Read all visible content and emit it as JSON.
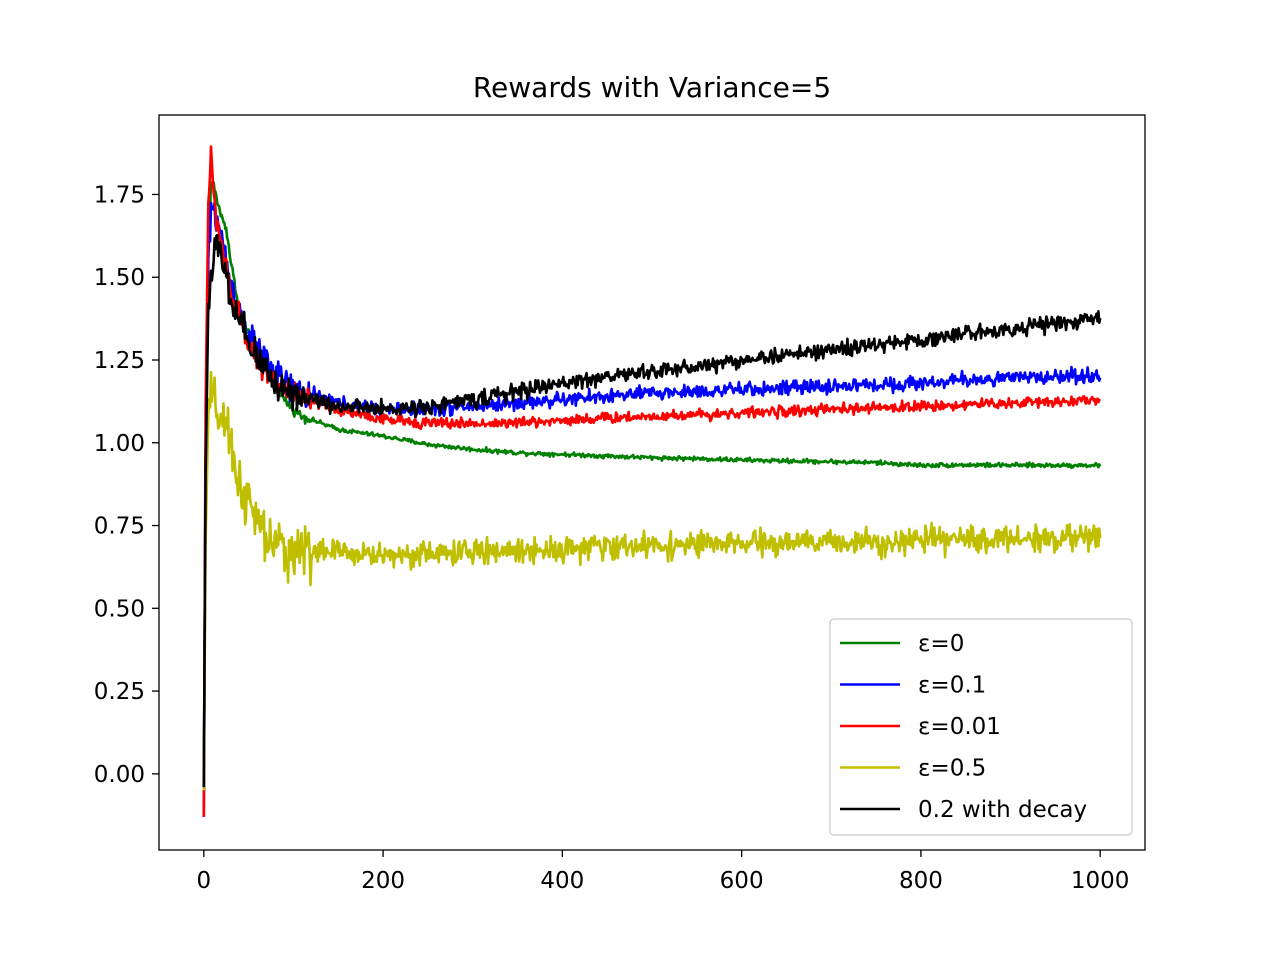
{
  "chart_data": {
    "type": "line",
    "title": "Rewards with Variance=5",
    "xlabel": "",
    "ylabel": "",
    "xlim": [
      -50,
      1050
    ],
    "ylim": [
      -0.23,
      1.99
    ],
    "xticks": [
      0,
      200,
      400,
      600,
      800,
      1000
    ],
    "yticks": [
      0.0,
      0.25,
      0.5,
      0.75,
      1.0,
      1.25,
      1.5,
      1.75
    ],
    "xtick_labels": [
      "0",
      "200",
      "400",
      "600",
      "800",
      "1000"
    ],
    "ytick_labels": [
      "0.00",
      "0.25",
      "0.50",
      "0.75",
      "1.00",
      "1.25",
      "1.50",
      "1.75"
    ],
    "grid": false,
    "legend_position": "lower-right",
    "series": [
      {
        "name": "ε=0",
        "color": "#008000",
        "noise": 0.006,
        "x": [
          0,
          2,
          5,
          8,
          10,
          14,
          20,
          25,
          30,
          35,
          40,
          50,
          60,
          70,
          80,
          90,
          100,
          110,
          120,
          150,
          200,
          250,
          300,
          350,
          400,
          450,
          500,
          550,
          600,
          650,
          700,
          750,
          800,
          850,
          900,
          950,
          1000
        ],
        "y": [
          -0.05,
          0.95,
          1.6,
          1.78,
          1.79,
          1.74,
          1.68,
          1.65,
          1.55,
          1.47,
          1.4,
          1.33,
          1.26,
          1.22,
          1.17,
          1.13,
          1.1,
          1.08,
          1.07,
          1.04,
          1.02,
          0.995,
          0.98,
          0.97,
          0.965,
          0.96,
          0.955,
          0.952,
          0.948,
          0.945,
          0.943,
          0.94,
          0.932,
          0.933,
          0.932,
          0.932,
          0.932
        ]
      },
      {
        "name": "ε=0.1",
        "color": "#0000ff",
        "noise": 0.02,
        "x": [
          0,
          2,
          5,
          8,
          10,
          14,
          20,
          25,
          30,
          40,
          50,
          60,
          70,
          80,
          100,
          150,
          200,
          250,
          300,
          350,
          400,
          450,
          500,
          550,
          600,
          650,
          700,
          750,
          800,
          850,
          900,
          950,
          1000
        ],
        "y": [
          -0.13,
          0.95,
          1.55,
          1.68,
          1.72,
          1.68,
          1.62,
          1.55,
          1.48,
          1.4,
          1.32,
          1.28,
          1.25,
          1.2,
          1.16,
          1.12,
          1.1,
          1.1,
          1.11,
          1.12,
          1.13,
          1.14,
          1.15,
          1.155,
          1.16,
          1.165,
          1.17,
          1.175,
          1.18,
          1.19,
          1.195,
          1.2,
          1.205
        ]
      },
      {
        "name": "ε=0.01",
        "color": "#ff0000",
        "noise": 0.015,
        "x": [
          0,
          2,
          5,
          8,
          10,
          14,
          20,
          25,
          30,
          40,
          50,
          60,
          70,
          80,
          100,
          150,
          200,
          250,
          300,
          350,
          400,
          450,
          500,
          550,
          600,
          650,
          700,
          750,
          800,
          850,
          900,
          950,
          1000
        ],
        "y": [
          -0.13,
          1.1,
          1.72,
          1.88,
          1.77,
          1.68,
          1.6,
          1.52,
          1.45,
          1.38,
          1.3,
          1.25,
          1.22,
          1.18,
          1.14,
          1.1,
          1.07,
          1.06,
          1.058,
          1.06,
          1.068,
          1.075,
          1.08,
          1.085,
          1.09,
          1.095,
          1.1,
          1.105,
          1.11,
          1.115,
          1.12,
          1.125,
          1.13
        ]
      },
      {
        "name": "ε=0.5",
        "color": "#bfbf00",
        "noise": 0.035,
        "x": [
          0,
          2,
          5,
          8,
          10,
          14,
          20,
          25,
          30,
          40,
          50,
          60,
          70,
          80,
          100,
          150,
          200,
          250,
          300,
          350,
          400,
          450,
          500,
          550,
          600,
          650,
          700,
          750,
          800,
          850,
          900,
          950,
          1000
        ],
        "y": [
          -0.05,
          0.7,
          1.08,
          1.14,
          1.12,
          1.1,
          1.07,
          1.03,
          0.98,
          0.88,
          0.81,
          0.76,
          0.71,
          0.685,
          0.675,
          0.67,
          0.66,
          0.665,
          0.67,
          0.675,
          0.68,
          0.685,
          0.69,
          0.692,
          0.695,
          0.698,
          0.7,
          0.702,
          0.705,
          0.708,
          0.71,
          0.712,
          0.715
        ]
      },
      {
        "name": "0.2 with decay",
        "color": "#000000",
        "noise": 0.022,
        "x": [
          0,
          2,
          5,
          8,
          10,
          14,
          20,
          25,
          30,
          40,
          50,
          60,
          70,
          80,
          100,
          150,
          200,
          250,
          300,
          350,
          400,
          450,
          500,
          550,
          600,
          650,
          700,
          750,
          800,
          850,
          900,
          950,
          1000
        ],
        "y": [
          -0.04,
          0.9,
          1.42,
          1.5,
          1.55,
          1.6,
          1.55,
          1.5,
          1.42,
          1.36,
          1.3,
          1.25,
          1.22,
          1.18,
          1.15,
          1.11,
          1.1,
          1.11,
          1.13,
          1.155,
          1.18,
          1.2,
          1.215,
          1.23,
          1.25,
          1.265,
          1.28,
          1.295,
          1.31,
          1.33,
          1.345,
          1.36,
          1.375
        ]
      }
    ]
  }
}
